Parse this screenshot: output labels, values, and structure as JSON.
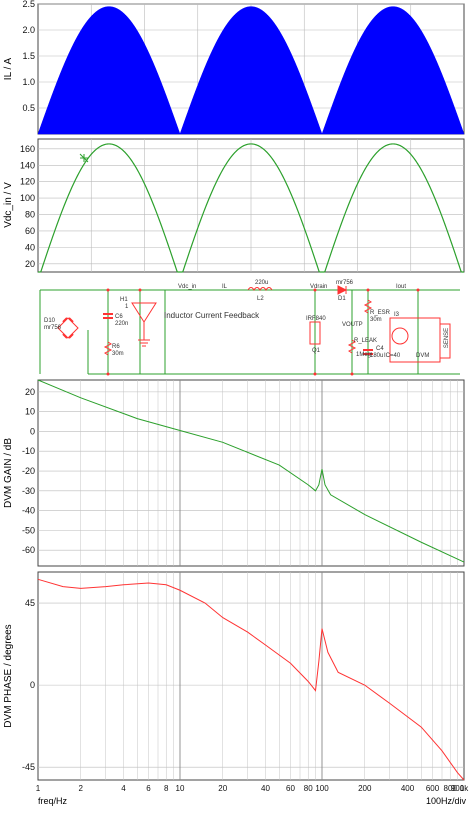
{
  "chart_data": [
    {
      "type": "area",
      "ylabel": "IL / A",
      "ylim": [
        0,
        2.5
      ],
      "yticks": [
        0.5,
        1.0,
        1.5,
        2.0,
        2.5
      ],
      "ytick_labels": [
        "0.5",
        "1.0",
        "1.5",
        "2.0",
        "2.5"
      ],
      "shape": "rectified-sine",
      "peak": 2.45,
      "cycles": 3,
      "grid": true,
      "series_color": "#0000ff"
    },
    {
      "type": "line",
      "ylabel": "Vdc_in / V",
      "ylim": [
        10,
        172
      ],
      "yticks": [
        20,
        40,
        60,
        80,
        100,
        120,
        140,
        160
      ],
      "ytick_labels": [
        "20",
        "40",
        "60",
        "80",
        "100",
        "120",
        "140",
        "160"
      ],
      "shape": "rectified-sine",
      "peak": 166,
      "cycles": 3,
      "grid": true,
      "series_color": "#2ca02c"
    },
    {
      "type": "line",
      "ylabel": "DVM GAIN / dB",
      "xscale": "log",
      "xlim": [
        1,
        1000
      ],
      "ylim": [
        -68,
        26
      ],
      "yticks": [
        20,
        10,
        0,
        -10,
        -20,
        -30,
        -40,
        -50,
        -60
      ],
      "ytick_labels": [
        "20",
        "10",
        "0",
        "-10",
        "-20",
        "-30",
        "-40",
        "-50",
        "-60"
      ],
      "grid": true,
      "series_color": "#2ca02c",
      "x": [
        1,
        2,
        5,
        10,
        20,
        50,
        80,
        90,
        95,
        100,
        105,
        115,
        200,
        500,
        1000
      ],
      "y": [
        26,
        17,
        6.5,
        0.5,
        -5.5,
        -17,
        -27,
        -30,
        -27,
        -19,
        -27,
        -32,
        -42,
        -56,
        -66
      ]
    },
    {
      "type": "line",
      "ylabel": "DVM PHASE / degrees",
      "xscale": "log",
      "xlim": [
        1,
        1000
      ],
      "ylim": [
        -52,
        62
      ],
      "yticks": [
        45,
        0,
        -45
      ],
      "ytick_labels": [
        "45",
        "0",
        "-45"
      ],
      "xticks": [
        1,
        2,
        4,
        6,
        8,
        10,
        20,
        40,
        60,
        80,
        100,
        200,
        400,
        600,
        800,
        900,
        1000
      ],
      "xtick_labels": [
        "1",
        "2",
        "4",
        "6",
        "8",
        "10",
        "20",
        "40",
        "60",
        "80",
        "100",
        "200",
        "400",
        "600",
        "800",
        "900",
        "1k"
      ],
      "xlabel": "freq/Hz",
      "x_note": "100Hz/div",
      "grid": true,
      "series_color": "#ff3333",
      "x": [
        1,
        1.5,
        2,
        3,
        4,
        6,
        8,
        10,
        15,
        20,
        30,
        40,
        60,
        80,
        90,
        95,
        100,
        110,
        130,
        200,
        300,
        500,
        700,
        900,
        1000
      ],
      "y": [
        58,
        54,
        53,
        54,
        55,
        56,
        55,
        52,
        45,
        37,
        29,
        22,
        12,
        2,
        -3,
        13,
        31,
        18,
        7,
        0,
        -10,
        -23,
        -36,
        -48,
        -52
      ]
    }
  ],
  "schematic": {
    "labels": {
      "vdc_in": "Vdc_in",
      "il": "IL",
      "vdrain": "Vdrain",
      "iout": "Iout",
      "voutp": "VOUTP",
      "l2": "L2",
      "l2_val": "220u",
      "d1": "D1",
      "d1_part": "mr756",
      "d10": "D10",
      "d10_part": "mr756",
      "h1": "H1",
      "h1_gain": "1",
      "c6": "C6",
      "c6_val": "220n",
      "r6": "R6",
      "r6_val": "30m",
      "q1": "Q1",
      "q1_part": "IRF840",
      "r_esr": "R_ESR",
      "r_esr_val": "30m",
      "r_leak": "R_LEAK",
      "r_leak_val": "1Meg",
      "c4": "C4",
      "c4_val": "180u",
      "c4_ic": "IC=40",
      "i3": "I3",
      "dvm": "DVM",
      "sense": "SENSE",
      "feedback": "Inductor Current Feedback"
    }
  }
}
